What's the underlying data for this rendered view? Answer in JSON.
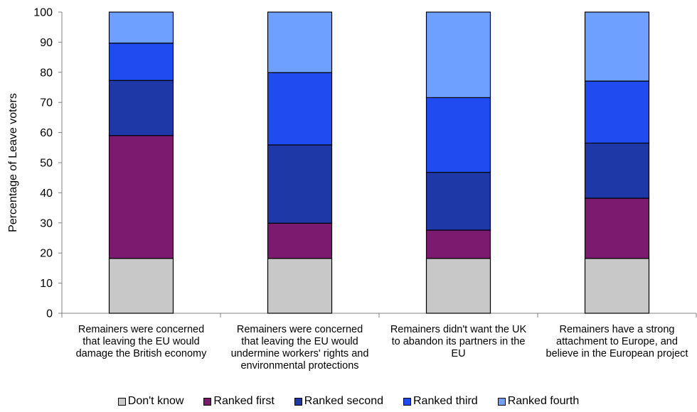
{
  "chart_data": {
    "type": "bar",
    "stacked": true,
    "ylabel": "Percentage of Leave voters",
    "ylim": [
      0,
      100
    ],
    "yticks": [
      "0",
      "10",
      "20",
      "30",
      "40",
      "50",
      "60",
      "70",
      "80",
      "90",
      "100"
    ],
    "categories": [
      [
        "Remainers were concerned",
        "that leaving the EU would",
        "damage the British economy"
      ],
      [
        "Remainers were concerned",
        "that leaving the EU would",
        "undermine workers' rights and",
        "environmental protections"
      ],
      [
        "Remainers didn't want the UK",
        "to abandon its partners in the",
        "EU"
      ],
      [
        "Remainers have a strong",
        "attachment to Europe, and",
        "believe in the European project"
      ]
    ],
    "series": [
      {
        "name": "Don't know",
        "color": "#c8c8c8",
        "values": [
          18.2,
          18.2,
          18.2,
          18.2
        ]
      },
      {
        "name": "Ranked first",
        "color": "#7b1a6e",
        "values": [
          40.8,
          11.7,
          9.4,
          20.0
        ]
      },
      {
        "name": "Ranked second",
        "color": "#1f38a8",
        "values": [
          18.3,
          26.0,
          19.2,
          18.3
        ]
      },
      {
        "name": "Ranked third",
        "color": "#1f4bf0",
        "values": [
          12.4,
          24.0,
          24.8,
          20.6
        ]
      },
      {
        "name": "Ranked fourth",
        "color": "#6ea0ff",
        "values": [
          10.3,
          20.1,
          28.4,
          22.9
        ]
      }
    ],
    "grid": false,
    "legend_position": "bottom"
  }
}
